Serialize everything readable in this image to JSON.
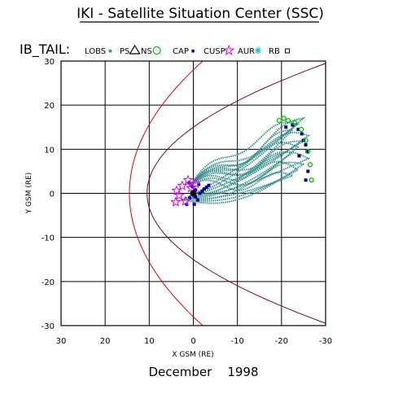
{
  "chart_data": {
    "type": "scatter",
    "title": "IKI - Satellite Situation Center (SSC)",
    "subtitle": "IB_TAIL:",
    "xlabel": "X GSM (RE)",
    "ylabel": "Y GSM (RE)",
    "date_label": "December    1998",
    "xlim": [
      30,
      -30
    ],
    "ylim": [
      30,
      -30
    ],
    "x_ticks": [
      "30",
      "20",
      "10",
      "0",
      "-10",
      "-20",
      "-30"
    ],
    "y_ticks": [
      "-30",
      "-20",
      "-10",
      "0",
      "10",
      "20",
      "30"
    ],
    "grid": true,
    "legend_position": "top",
    "legend": [
      {
        "label": "LOBS",
        "marker": "dot",
        "color": "#3a8f8f"
      },
      {
        "label": "PS",
        "marker": "triangle",
        "color": "#000000"
      },
      {
        "label": "NS",
        "marker": "circle",
        "color": "#00c000"
      },
      {
        "label": "CAP",
        "marker": "dot",
        "color": "#0000c8"
      },
      {
        "label": "CUSP",
        "marker": "star",
        "color": "#e000e0"
      },
      {
        "label": "AUR",
        "marker": "asterisk",
        "color": "#00c8c8"
      },
      {
        "label": "RB",
        "marker": "square",
        "color": "#000000"
      }
    ],
    "boundaries": [
      {
        "name": "bow-shock",
        "color": "#e00000",
        "nose_x": 14.5,
        "flank_y_at_x0": 28
      },
      {
        "name": "magnetopause",
        "color": "#800020",
        "nose_x": 10.5,
        "flank_y_at_x0": 15
      }
    ],
    "colors": {
      "trajectory": "#3a8f8f",
      "plasma_sheet": "#000080",
      "cap": "#0000ff",
      "cusp": "#e000e0",
      "neutral_sheet": "#00c000"
    },
    "earth_marker": {
      "x": 0,
      "y": 0
    }
  }
}
